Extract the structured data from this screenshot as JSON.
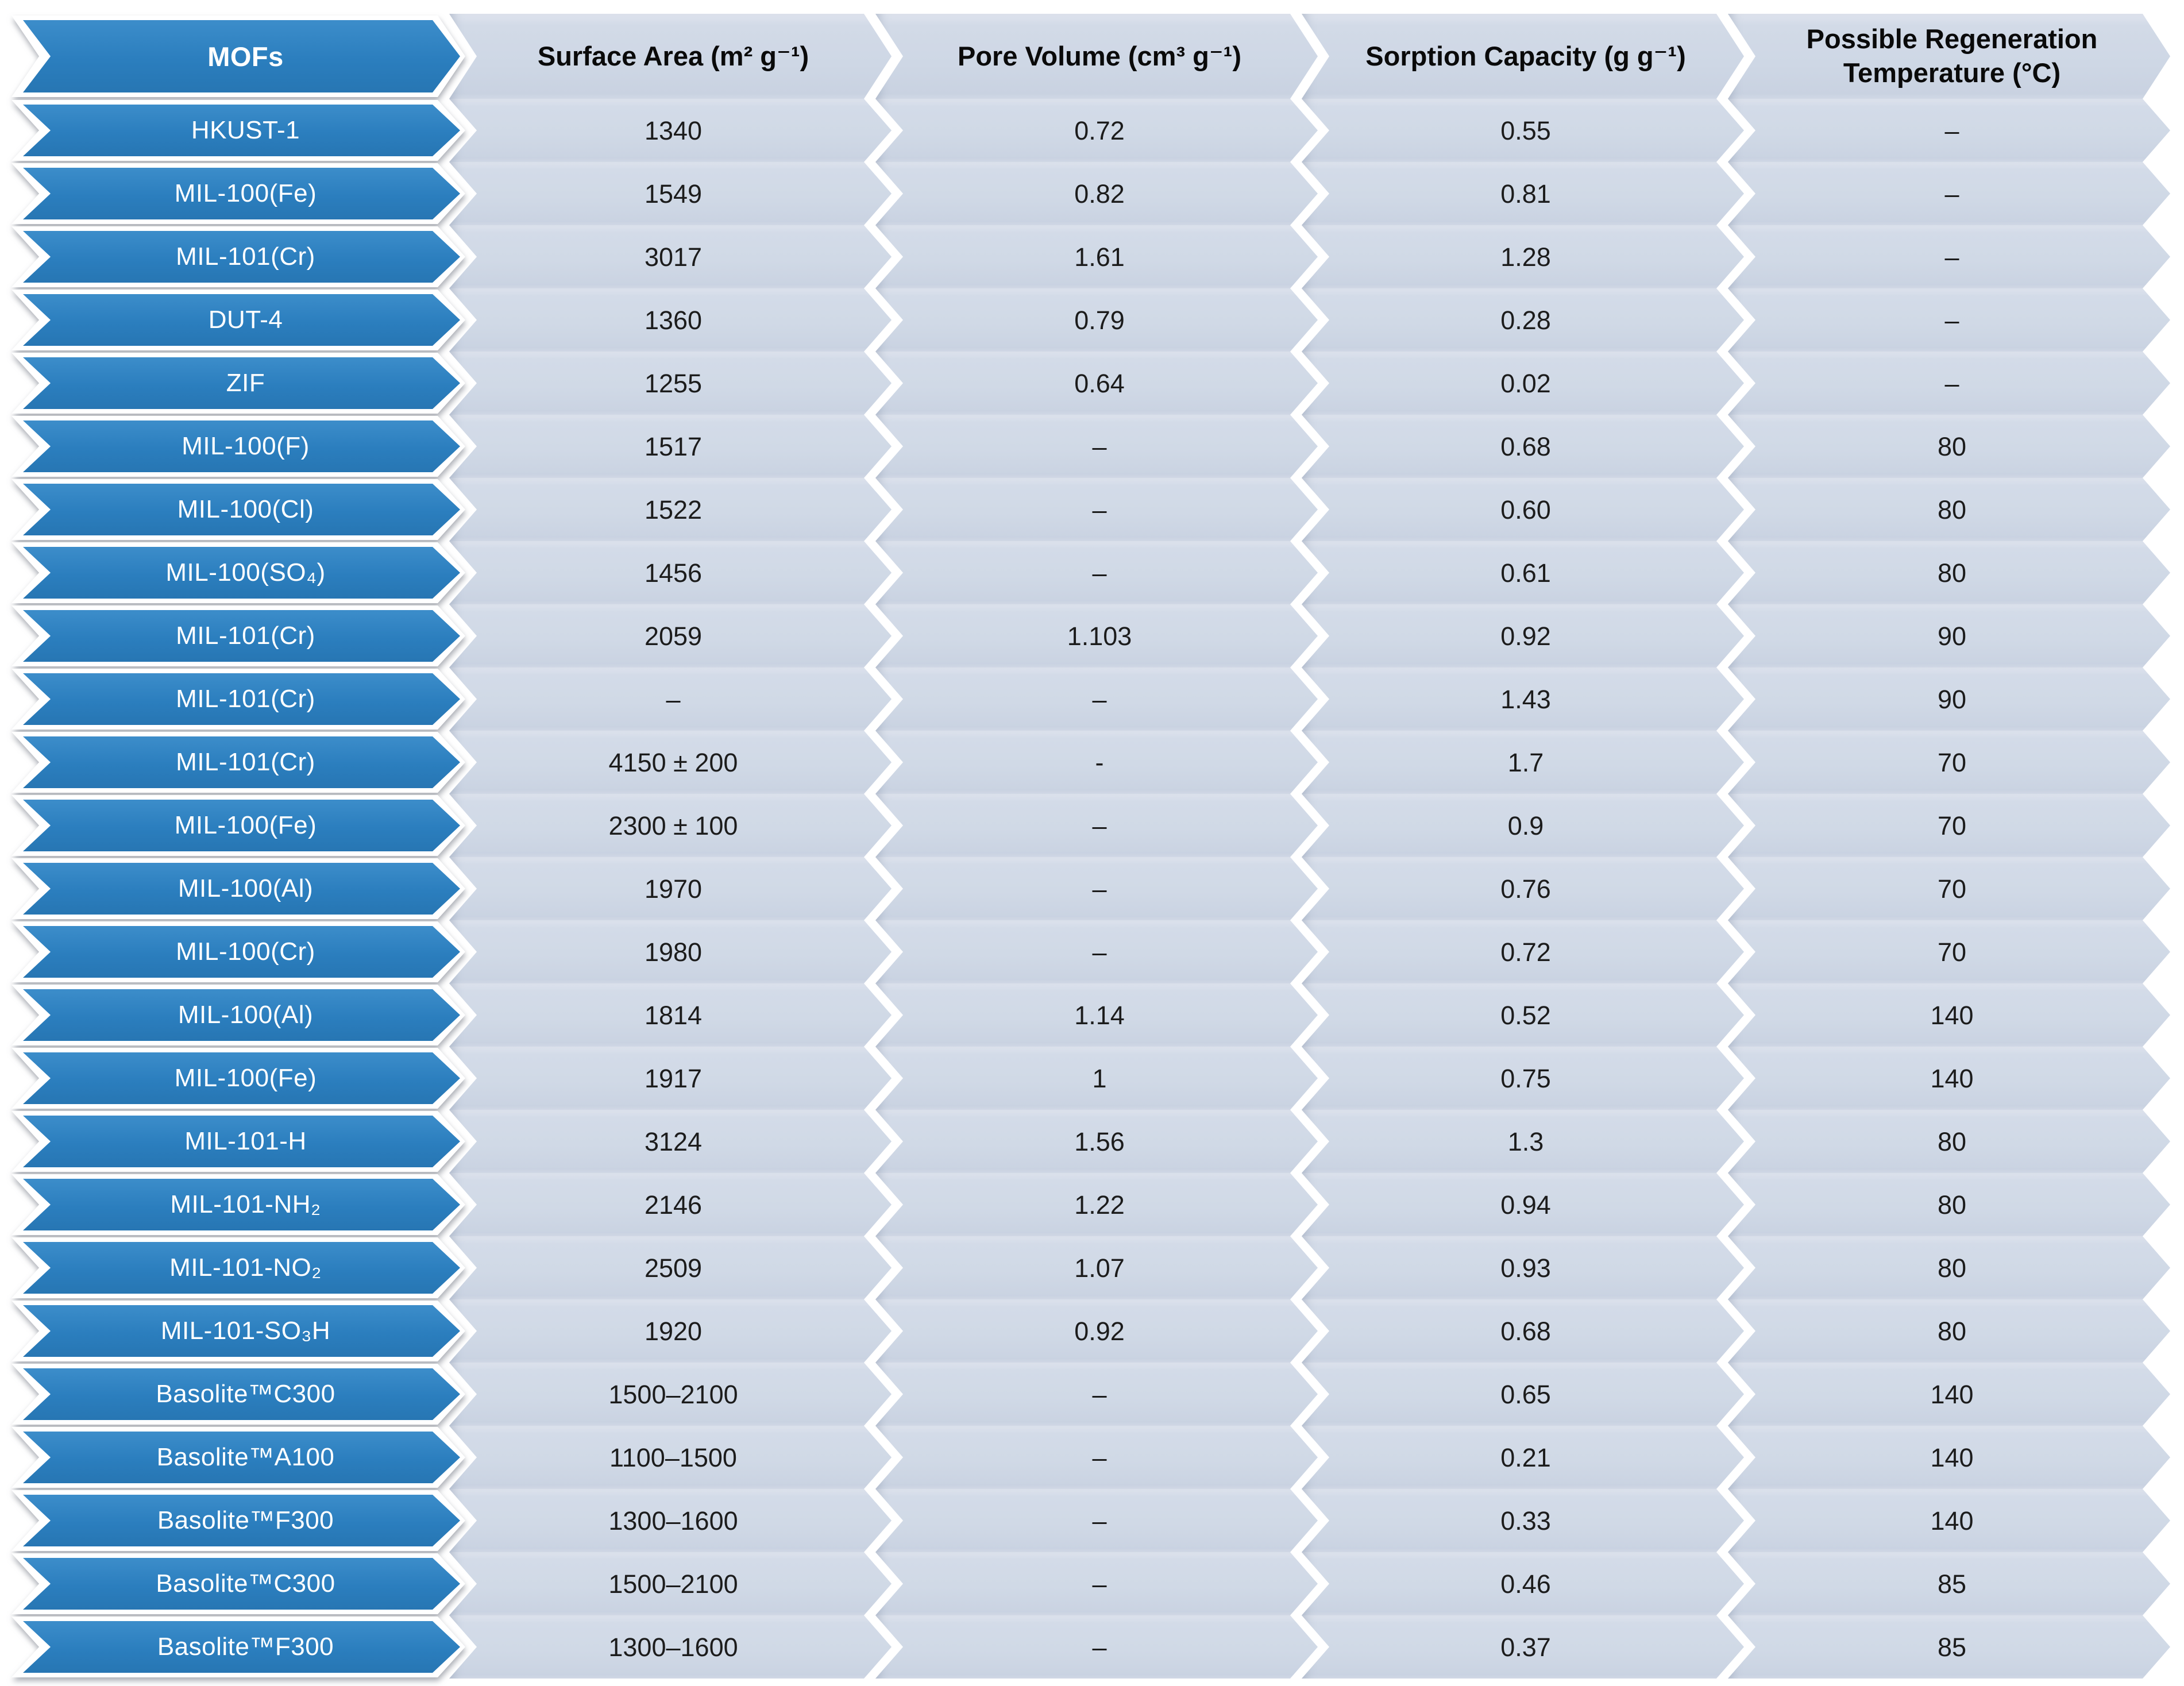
{
  "figure": {
    "description_visible": false
  },
  "display": {
    "header": {
      "mofs": "MOFs",
      "surface_area": "Surface Area (m² g⁻¹)",
      "pore_volume": "Pore Volume (cm³ g⁻¹)",
      "sorption_capacity": "Sorption Capacity (g g⁻¹)",
      "regeneration_temp": "Possible Regeneration\nTemperature (°C)"
    }
  },
  "colors": {
    "label_blue": "#2b7ebe",
    "label_blue_dark": "#2776b3",
    "label_blue_light": "#3c8dca",
    "label_outline_white": "#ffffff",
    "cell_fill": "#d0d9e6",
    "cell_fill_light": "#dfe4ee",
    "cell_fill_dark": "#cad3e2",
    "header_text": "#0a0a0a",
    "data_text": "#1c1c1c",
    "label_text": "#ffffff",
    "page_background": "#ffffff"
  },
  "chart_data": {
    "type": "table",
    "columns": [
      "MOFs",
      "Surface Area (m² g⁻¹)",
      "Pore Volume (cm³ g⁻¹)",
      "Sorption Capacity (g g⁻¹)",
      "Possible Regeneration Temperature (°C)"
    ],
    "rows": [
      [
        "HKUST-1",
        "1340",
        "0.72",
        "0.55",
        "–"
      ],
      [
        "MIL-100(Fe)",
        "1549",
        "0.82",
        "0.81",
        "–"
      ],
      [
        "MIL-101(Cr)",
        "3017",
        "1.61",
        "1.28",
        "–"
      ],
      [
        "DUT-4",
        "1360",
        "0.79",
        "0.28",
        "–"
      ],
      [
        "ZIF",
        "1255",
        "0.64",
        "0.02",
        "–"
      ],
      [
        "MIL-100(F)",
        "1517",
        "–",
        "0.68",
        "80"
      ],
      [
        "MIL-100(Cl)",
        "1522",
        "–",
        "0.60",
        "80"
      ],
      [
        "MIL-100(SO₄)",
        "1456",
        "–",
        "0.61",
        "80"
      ],
      [
        "MIL-101(Cr)",
        "2059",
        "1.103",
        "0.92",
        "90"
      ],
      [
        "MIL-101(Cr)",
        "–",
        "–",
        "1.43",
        "90"
      ],
      [
        "MIL-101(Cr)",
        "4150 ± 200",
        "-",
        "1.7",
        "70"
      ],
      [
        "MIL-100(Fe)",
        "2300 ± 100",
        "–",
        "0.9",
        "70"
      ],
      [
        "MIL-100(Al)",
        "1970",
        "–",
        "0.76",
        "70"
      ],
      [
        "MIL-100(Cr)",
        "1980",
        "–",
        "0.72",
        "70"
      ],
      [
        "MIL-100(Al)",
        "1814",
        "1.14",
        "0.52",
        "140"
      ],
      [
        "MIL-100(Fe)",
        "1917",
        "1",
        "0.75",
        "140"
      ],
      [
        "MIL-101-H",
        "3124",
        "1.56",
        "1.3",
        "80"
      ],
      [
        "MIL-101-NH₂",
        "2146",
        "1.22",
        "0.94",
        "80"
      ],
      [
        "MIL-101-NO₂",
        "2509",
        "1.07",
        "0.93",
        "80"
      ],
      [
        "MIL-101-SO₃H",
        "1920",
        "0.92",
        "0.68",
        "80"
      ],
      [
        "Basolite™C300",
        "1500–2100",
        "–",
        "0.65",
        "140"
      ],
      [
        "Basolite™A100",
        "1100–1500",
        "–",
        "0.21",
        "140"
      ],
      [
        "Basolite™F300",
        "1300–1600",
        "–",
        "0.33",
        "140"
      ],
      [
        "Basolite™C300",
        "1500–2100",
        "–",
        "0.46",
        "85"
      ],
      [
        "Basolite™F300",
        "1300–1600",
        "–",
        "0.37",
        "85"
      ]
    ]
  }
}
